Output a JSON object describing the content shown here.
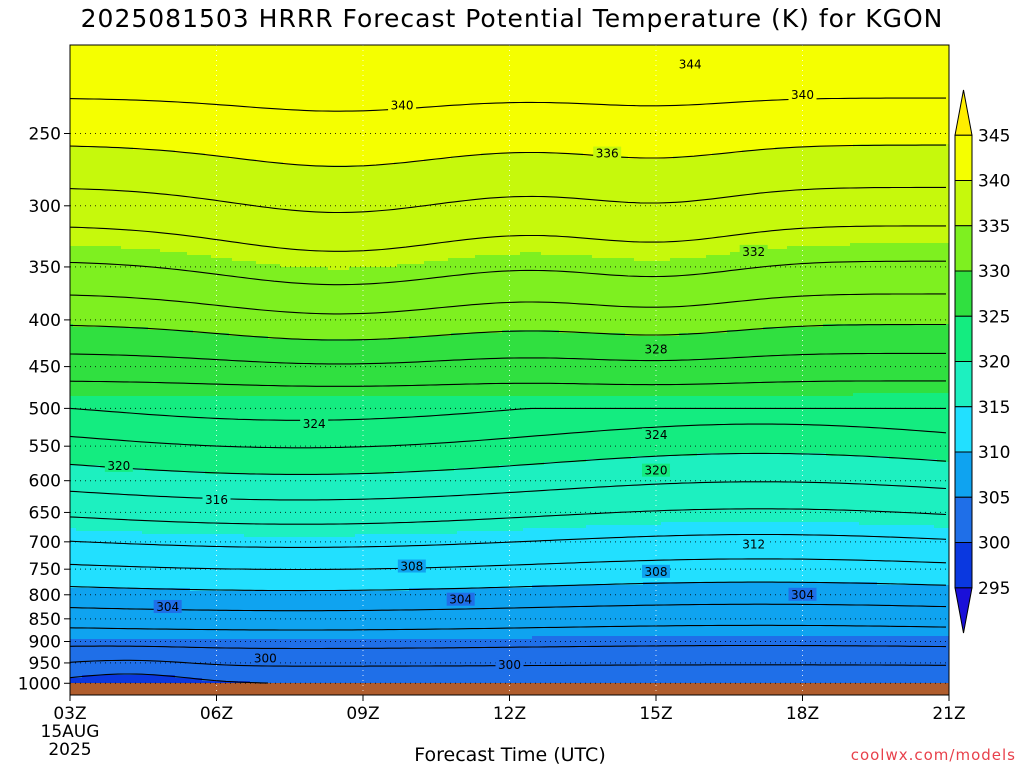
{
  "chart_data": {
    "type": "heatmap",
    "title": "2025081503 HRRR Forecast Potential Temperature (K) for KGON",
    "xlabel": "Forecast Time (UTC)",
    "x_ticks": [
      "03Z",
      "06Z",
      "09Z",
      "12Z",
      "15Z",
      "18Z",
      "21Z"
    ],
    "x_date_lines": [
      "15AUG",
      "2025"
    ],
    "x_hours": [
      3,
      21
    ],
    "y_ticks": [
      250,
      300,
      350,
      400,
      450,
      500,
      550,
      600,
      650,
      700,
      750,
      800,
      850,
      900,
      950,
      1000
    ],
    "pressure_range_hpa": [
      1030,
      200
    ],
    "y_scale": "log",
    "gridlines": "dotted",
    "colorbar": {
      "levels": [
        295,
        300,
        305,
        310,
        315,
        320,
        325,
        330,
        335,
        340,
        345
      ],
      "colors": [
        "#1a10d8",
        "#0a38e0",
        "#1f6fe8",
        "#0fa3f0",
        "#22e0ff",
        "#1df0c0",
        "#14ec80",
        "#30e040",
        "#7ef020",
        "#c6f90c",
        "#f5ff00",
        "#ffee00"
      ],
      "extends": "both"
    },
    "contour_labels": [
      {
        "value": 344,
        "hour": 15.7,
        "p": 210
      },
      {
        "value": 340,
        "hour": 9.8,
        "p": 233
      },
      {
        "value": 340,
        "hour": 18.0,
        "p": 227
      },
      {
        "value": 336,
        "hour": 14.0,
        "p": 263
      },
      {
        "value": 332,
        "hour": 17.0,
        "p": 337
      },
      {
        "value": 328,
        "hour": 15.0,
        "p": 431
      },
      {
        "value": 324,
        "hour": 8.0,
        "p": 520
      },
      {
        "value": 324,
        "hour": 15.0,
        "p": 535
      },
      {
        "value": 320,
        "hour": 4.0,
        "p": 578
      },
      {
        "value": 320,
        "hour": 15.0,
        "p": 585
      },
      {
        "value": 316,
        "hour": 6.0,
        "p": 630
      },
      {
        "value": 312,
        "hour": 17.0,
        "p": 705
      },
      {
        "value": 308,
        "hour": 10.0,
        "p": 745
      },
      {
        "value": 308,
        "hour": 15.0,
        "p": 755
      },
      {
        "value": 304,
        "hour": 5.0,
        "p": 825
      },
      {
        "value": 304,
        "hour": 11.0,
        "p": 810
      },
      {
        "value": 304,
        "hour": 18.0,
        "p": 800
      },
      {
        "value": 300,
        "hour": 7.0,
        "p": 940
      },
      {
        "value": 300,
        "hour": 12.0,
        "p": 955
      }
    ],
    "credit": "coolwx.com/models"
  }
}
